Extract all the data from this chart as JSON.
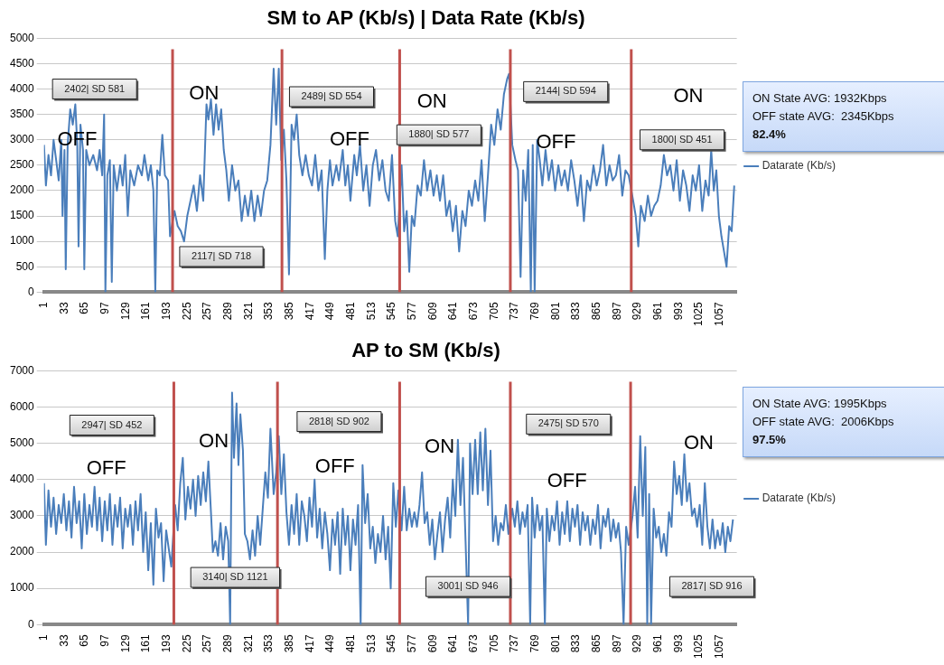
{
  "chart_data": [
    {
      "type": "line",
      "title": "SM to AP (Kb/s) | Data Rate (Kb/s)",
      "xlim": [
        1,
        1084
      ],
      "xticks": [
        1,
        33,
        65,
        97,
        129,
        161,
        193,
        225,
        257,
        289,
        321,
        353,
        385,
        417,
        449,
        481,
        513,
        545,
        577,
        609,
        641,
        673,
        705,
        737,
        769,
        801,
        833,
        865,
        897,
        929,
        961,
        993,
        1025,
        1057
      ],
      "ylim": [
        0,
        5000
      ],
      "yticks": [
        0,
        500,
        1000,
        1500,
        2000,
        2500,
        3000,
        3500,
        4000,
        4500,
        5000
      ],
      "grid": "y",
      "legend": "right",
      "marker": "none",
      "line_style": "solid",
      "series": [
        {
          "name": "Datarate (Kb/s)",
          "color": "#4a7ebb",
          "x": [
            1,
            4,
            8,
            12,
            16,
            20,
            24,
            28,
            30,
            33,
            35,
            38,
            42,
            46,
            50,
            53,
            55,
            58,
            62,
            64,
            67,
            72,
            78,
            84,
            88,
            92,
            95,
            97,
            100,
            104,
            107,
            110,
            115,
            120,
            124,
            128,
            132,
            136,
            142,
            148,
            154,
            158,
            164,
            168,
            172,
            175,
            178,
            182,
            186,
            190,
            195,
            198,
            205,
            210,
            215,
            220,
            225,
            230,
            235,
            240,
            245,
            250,
            255,
            258,
            262,
            266,
            270,
            274,
            278,
            282,
            286,
            290,
            295,
            300,
            305,
            310,
            315,
            320,
            325,
            330,
            335,
            340,
            345,
            350,
            355,
            360,
            364,
            368,
            372,
            376,
            380,
            384,
            388,
            392,
            396,
            400,
            405,
            410,
            415,
            420,
            425,
            430,
            435,
            440,
            444,
            448,
            452,
            458,
            462,
            468,
            472,
            476,
            480,
            486,
            490,
            495,
            500,
            505,
            510,
            515,
            520,
            525,
            530,
            535,
            540,
            545,
            550,
            554,
            560,
            564,
            568,
            572,
            576,
            580,
            585,
            590,
            595,
            600,
            605,
            610,
            615,
            620,
            625,
            630,
            635,
            640,
            645,
            650,
            655,
            660,
            665,
            670,
            675,
            680,
            685,
            690,
            695,
            700,
            705,
            710,
            715,
            720,
            725,
            728,
            733,
            738,
            742,
            746,
            750,
            754,
            758,
            762,
            765,
            768,
            772,
            776,
            780,
            785,
            790,
            795,
            800,
            805,
            810,
            815,
            820,
            825,
            830,
            835,
            840,
            845,
            850,
            855,
            860,
            865,
            870,
            875,
            880,
            885,
            890,
            895,
            900,
            905,
            910,
            915,
            922,
            926,
            930,
            934,
            940,
            945,
            950,
            955,
            960,
            965,
            970,
            975,
            980,
            985,
            990,
            995,
            1000,
            1005,
            1010,
            1015,
            1020,
            1025,
            1030,
            1035,
            1040,
            1044,
            1048,
            1052,
            1056,
            1060,
            1064,
            1068,
            1072,
            1076,
            1080
          ],
          "values": [
            2900,
            2100,
            2700,
            2300,
            3000,
            2600,
            2200,
            3000,
            1500,
            2800,
            450,
            2900,
            3600,
            3300,
            3700,
            2900,
            900,
            3300,
            2800,
            450,
            2800,
            2500,
            2700,
            2400,
            2800,
            2300,
            3500,
            0,
            2300,
            2600,
            200,
            2500,
            2000,
            2500,
            2100,
            2700,
            1500,
            2400,
            2100,
            2500,
            2300,
            2700,
            2200,
            2500,
            2000,
            0,
            2400,
            2300,
            3100,
            2300,
            2200,
            1100,
            1600,
            1300,
            1200,
            1000,
            1500,
            1800,
            2100,
            1600,
            2300,
            1800,
            3700,
            3400,
            3800,
            3100,
            3700,
            3200,
            3600,
            2800,
            2400,
            1800,
            2500,
            2000,
            2200,
            1400,
            1900,
            1500,
            2000,
            1400,
            1900,
            1500,
            2000,
            2200,
            2900,
            4400,
            3300,
            4400,
            2600,
            3200,
            2200,
            350,
            3300,
            3000,
            3500,
            2700,
            2300,
            2700,
            2300,
            2100,
            2700,
            2000,
            2400,
            650,
            2000,
            2600,
            2100,
            2500,
            2200,
            2800,
            2100,
            2500,
            1800,
            2700,
            2300,
            2900,
            2000,
            2500,
            1700,
            2500,
            2800,
            2200,
            2600,
            2000,
            1800,
            2700,
            1400,
            1100,
            2500,
            1200,
            1600,
            400,
            1500,
            1300,
            2100,
            1900,
            2600,
            2000,
            2400,
            1900,
            2300,
            1800,
            2300,
            1500,
            1800,
            1200,
            1700,
            800,
            1600,
            1300,
            2000,
            1700,
            2200,
            1800,
            2600,
            1400,
            2300,
            3300,
            2900,
            3600,
            3200,
            3900,
            4200,
            4300,
            2900,
            2600,
            2400,
            300,
            2400,
            1800,
            2800,
            0,
            2900,
            0,
            3000,
            2600,
            2100,
            2800,
            2200,
            2600,
            2000,
            2500,
            2100,
            2400,
            2000,
            2600,
            2200,
            1700,
            2300,
            1400,
            2200,
            2000,
            2500,
            2100,
            2400,
            2900,
            2100,
            2500,
            2200,
            2300,
            2700,
            1900,
            2400,
            2300,
            1800,
            1500,
            900,
            1700,
            1400,
            1900,
            1500,
            1700,
            1800,
            2100,
            2700,
            2300,
            2500,
            2000,
            2600,
            1800,
            2400,
            2100,
            1600,
            2300,
            2000,
            2500,
            1600,
            2200,
            1900,
            2800,
            2000,
            2400,
            1500,
            1100,
            800,
            500,
            1300,
            1200,
            2100
          ]
        }
      ],
      "ref_lines": [
        {
          "axis": "x",
          "value": 202,
          "color": "#c0504d"
        },
        {
          "axis": "x",
          "value": 373,
          "color": "#c0504d"
        },
        {
          "axis": "x",
          "value": 557,
          "color": "#c0504d"
        },
        {
          "axis": "x",
          "value": 730,
          "color": "#c0504d"
        },
        {
          "axis": "x",
          "value": 919,
          "color": "#c0504d"
        }
      ],
      "annotations": [
        "2402| SD 581",
        "OFF",
        "ON",
        "2117| SD 718",
        "2489| SD 554",
        "OFF",
        "ON",
        "1880| SD 577",
        "2144| SD 594",
        "OFF",
        "ON",
        "1800| SD 451",
        "ON State AVG: 1932Kbps",
        "OFF state AVG:  2345Kbps",
        "82.4%"
      ]
    },
    {
      "type": "line",
      "title": "AP to SM (Kb/s)",
      "xlim": [
        1,
        1084
      ],
      "xticks": [
        1,
        33,
        65,
        97,
        129,
        161,
        193,
        225,
        257,
        289,
        321,
        353,
        385,
        417,
        449,
        481,
        513,
        545,
        577,
        609,
        641,
        673,
        705,
        737,
        769,
        801,
        833,
        865,
        897,
        929,
        961,
        993,
        1025,
        1057
      ],
      "ylim": [
        0,
        7000
      ],
      "yticks": [
        0,
        1000,
        2000,
        3000,
        4000,
        5000,
        6000,
        7000
      ],
      "grid": "y",
      "legend": "right",
      "marker": "none",
      "line_style": "solid",
      "series": [
        {
          "name": "Datarate (Kb/s)",
          "color": "#4a7ebb",
          "x": [
            1,
            4,
            8,
            12,
            16,
            20,
            24,
            28,
            32,
            36,
            40,
            44,
            48,
            52,
            56,
            60,
            64,
            68,
            72,
            76,
            80,
            84,
            88,
            92,
            96,
            100,
            104,
            108,
            112,
            116,
            120,
            124,
            128,
            132,
            136,
            140,
            144,
            148,
            152,
            156,
            160,
            164,
            168,
            172,
            176,
            180,
            184,
            188,
            192,
            196,
            200,
            206,
            210,
            214,
            218,
            222,
            226,
            230,
            234,
            238,
            242,
            246,
            250,
            254,
            258,
            262,
            265,
            269,
            273,
            277,
            281,
            285,
            289,
            292,
            295,
            298,
            302,
            305,
            308,
            312,
            315,
            319,
            323,
            327,
            331,
            335,
            339,
            343,
            347,
            351,
            355,
            360,
            364,
            368,
            372,
            376,
            380,
            384,
            388,
            392,
            396,
            400,
            404,
            408,
            412,
            416,
            420,
            424,
            428,
            432,
            436,
            440,
            444,
            448,
            452,
            456,
            460,
            464,
            468,
            472,
            476,
            480,
            484,
            488,
            492,
            496,
            499,
            503,
            507,
            511,
            515,
            519,
            523,
            527,
            531,
            535,
            539,
            543,
            547,
            551,
            555,
            560,
            564,
            568,
            572,
            576,
            580,
            584,
            588,
            592,
            596,
            600,
            604,
            608,
            612,
            616,
            620,
            624,
            628,
            632,
            636,
            640,
            644,
            648,
            652,
            656,
            660,
            664,
            667,
            671,
            675,
            679,
            683,
            687,
            691,
            695,
            699,
            703,
            707,
            711,
            715,
            719,
            723,
            727,
            733,
            737,
            741,
            745,
            749,
            753,
            757,
            761,
            764,
            768,
            772,
            776,
            780,
            784,
            787,
            791,
            795,
            799,
            803,
            807,
            811,
            815,
            819,
            823,
            827,
            831,
            835,
            839,
            843,
            847,
            851,
            855,
            859,
            863,
            867,
            871,
            875,
            879,
            883,
            887,
            891,
            895,
            899,
            903,
            907,
            911,
            915,
            921,
            925,
            929,
            933,
            937,
            941,
            944,
            947,
            950,
            954,
            958,
            962,
            966,
            970,
            974,
            978,
            982,
            986,
            990,
            994,
            998,
            1002,
            1006,
            1010,
            1014,
            1018,
            1022,
            1026,
            1030,
            1034,
            1038,
            1042,
            1046,
            1050,
            1054,
            1058,
            1062,
            1066,
            1070,
            1074,
            1078
          ],
          "values": [
            3900,
            2200,
            3700,
            2700,
            3500,
            2500,
            3300,
            2800,
            3600,
            2600,
            3400,
            2400,
            3800,
            2800,
            3400,
            2100,
            3600,
            2500,
            3300,
            2700,
            3800,
            2600,
            3500,
            2300,
            3400,
            2600,
            3600,
            2200,
            3300,
            2700,
            3500,
            2100,
            3200,
            2700,
            3300,
            2200,
            3400,
            2600,
            3600,
            2000,
            3100,
            1500,
            2800,
            1100,
            3200,
            2400,
            2800,
            1200,
            2600,
            2100,
            1600,
            3300,
            2600,
            3900,
            4600,
            2900,
            3800,
            3200,
            4000,
            3000,
            4100,
            3300,
            4200,
            3400,
            4500,
            3100,
            2000,
            2300,
            1900,
            2800,
            1800,
            2700,
            2300,
            0,
            6400,
            4600,
            6100,
            4400,
            5800,
            4800,
            2500,
            2300,
            1800,
            2600,
            1900,
            3000,
            2200,
            3200,
            4200,
            3500,
            5400,
            3600,
            4200,
            5200,
            3600,
            4700,
            3100,
            2200,
            3300,
            2500,
            3600,
            2200,
            3400,
            3000,
            2300,
            3500,
            2700,
            4000,
            2400,
            3200,
            2100,
            3100,
            2500,
            1500,
            2900,
            2200,
            3100,
            1400,
            3200,
            2200,
            3000,
            1500,
            2900,
            2200,
            3300,
            0,
            4400,
            2800,
            3600,
            2100,
            2700,
            1700,
            2500,
            2000,
            3000,
            1800,
            2700,
            1000,
            3900,
            2700,
            3700,
            2600,
            3800,
            2600,
            3200,
            2700,
            3100,
            2700,
            3300,
            4200,
            2800,
            3100,
            2200,
            2900,
            1800,
            2500,
            3100,
            2000,
            2900,
            3500,
            2400,
            4000,
            3000,
            5100,
            3300,
            4600,
            2300,
            0,
            5000,
            3600,
            5100,
            3600,
            5300,
            3700,
            5400,
            3300,
            4800,
            2300,
            3000,
            2200,
            2800,
            2600,
            3300,
            2500,
            3200,
            2700,
            3400,
            2500,
            3100,
            2700,
            3300,
            0,
            3500,
            2400,
            3300,
            2600,
            3000,
            0,
            3200,
            2300,
            3000,
            2600,
            3400,
            2200,
            3100,
            2500,
            3400,
            2300,
            3200,
            2700,
            3300,
            2200,
            3100,
            2600,
            3000,
            2200,
            2900,
            2500,
            3300,
            2100,
            3000,
            2700,
            3200,
            2300,
            2900,
            2400,
            2800,
            2000,
            0,
            2700,
            2200,
            3000,
            3800,
            2400,
            5200,
            3000,
            4900,
            0,
            3600,
            0,
            3200,
            2400,
            2700,
            2000,
            2500,
            1900,
            3100,
            2700,
            4500,
            3600,
            4100,
            3300,
            4700,
            3400,
            3900,
            3000,
            3200,
            2700,
            3300,
            2200,
            3900,
            2700,
            2100,
            2900,
            2100,
            2600,
            2200,
            2800,
            2000,
            2700,
            2300,
            2900
          ]
        }
      ],
      "ref_lines": [
        {
          "axis": "x",
          "value": 204,
          "color": "#c0504d"
        },
        {
          "axis": "x",
          "value": 366,
          "color": "#c0504d"
        },
        {
          "axis": "x",
          "value": 557,
          "color": "#c0504d"
        },
        {
          "axis": "x",
          "value": 730,
          "color": "#c0504d"
        },
        {
          "axis": "x",
          "value": 918,
          "color": "#c0504d"
        }
      ],
      "annotations": [
        "2947| SD 452",
        "OFF",
        "ON",
        "3140| SD 1121",
        "2818| SD 902",
        "OFF",
        "ON",
        "3001| SD 946",
        "2475| SD 570",
        "OFF",
        "ON",
        "2817| SD 916",
        "ON State AVG: 1995Kbps",
        "OFF state AVG:  2006Kbps",
        "97.5%"
      ]
    }
  ]
}
